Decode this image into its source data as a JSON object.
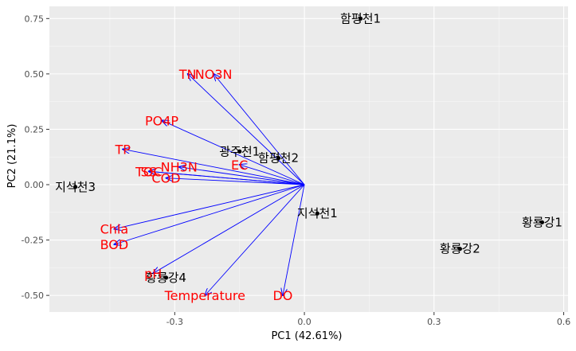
{
  "chart_data": {
    "type": "scatter",
    "title": "",
    "xlabel": "PC1 (42.61%)",
    "ylabel": "PC2 (21.1%)",
    "xlim": [
      -0.59,
      0.61
    ],
    "ylim": [
      -0.575,
      0.805
    ],
    "grid": true,
    "x_ticks": [
      -0.3,
      0.0,
      0.3,
      0.6
    ],
    "x_tick_labels": [
      "-0.3",
      "0.0",
      "0.3",
      "0.6"
    ],
    "y_ticks": [
      0.75,
      0.5,
      0.25,
      0.0,
      -0.25,
      -0.5
    ],
    "y_tick_labels": [
      "0.75",
      "0.50",
      "0.25",
      "0.00",
      "-0.25",
      "-0.50"
    ],
    "points": [
      {
        "label": "함평천1",
        "x": 0.13,
        "y": 0.75
      },
      {
        "label": "광주천1",
        "x": -0.15,
        "y": 0.15
      },
      {
        "label": "함평천2",
        "x": -0.06,
        "y": 0.12
      },
      {
        "label": "지석천3",
        "x": -0.53,
        "y": -0.01
      },
      {
        "label": "지석천1",
        "x": 0.03,
        "y": -0.13
      },
      {
        "label": "황룡강1",
        "x": 0.55,
        "y": -0.17
      },
      {
        "label": "황룡강2",
        "x": 0.36,
        "y": -0.29
      },
      {
        "label": "황룡강4",
        "x": -0.32,
        "y": -0.42
      }
    ],
    "loadings": [
      {
        "label": "TN",
        "x": -0.27,
        "y": 0.5
      },
      {
        "label": "NO3N",
        "x": -0.21,
        "y": 0.5
      },
      {
        "label": "PO4P",
        "x": -0.33,
        "y": 0.29
      },
      {
        "label": "TP",
        "x": -0.42,
        "y": 0.16
      },
      {
        "label": "NH3N",
        "x": -0.29,
        "y": 0.08
      },
      {
        "label": "TOC",
        "x": -0.36,
        "y": 0.06
      },
      {
        "label": "SS",
        "x": -0.36,
        "y": 0.06
      },
      {
        "label": "COD",
        "x": -0.32,
        "y": 0.03
      },
      {
        "label": "EC",
        "x": -0.15,
        "y": 0.09
      },
      {
        "label": "Chla",
        "x": -0.44,
        "y": -0.2
      },
      {
        "label": "BOD",
        "x": -0.44,
        "y": -0.27
      },
      {
        "label": "pH",
        "x": -0.35,
        "y": -0.4
      },
      {
        "label": "Temperature",
        "x": -0.23,
        "y": -0.5
      },
      {
        "label": "DO",
        "x": -0.05,
        "y": -0.5
      }
    ],
    "colors": {
      "panel": "#ebebeb",
      "grid_major": "#ffffff",
      "arrow": "#0000ff",
      "loading_label": "#ff0000",
      "point": "#000000",
      "tick_text": "#4d4d4d"
    }
  }
}
